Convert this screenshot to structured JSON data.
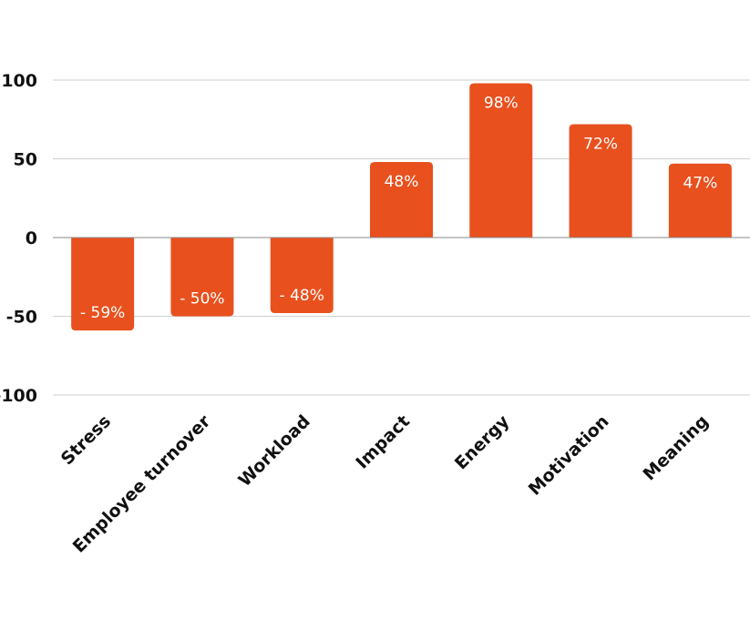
{
  "chart_data": {
    "type": "bar",
    "title": "",
    "xlabel": "",
    "ylabel": "",
    "categories": [
      "Stress",
      "Employee turnover",
      "Workload",
      "Impact",
      "Energy",
      "Motivation",
      "Meaning"
    ],
    "values": [
      -59,
      -50,
      -48,
      48,
      98,
      72,
      47
    ],
    "data_labels": [
      "- 59%",
      "- 50%",
      "- 48%",
      "48%",
      "98%",
      "72%",
      "47%"
    ],
    "ylim": [
      -100,
      100
    ],
    "yticks": [
      100,
      50,
      0,
      -50,
      -100
    ],
    "ytick_labels": [
      "100",
      "50",
      "0",
      "-50",
      "-100"
    ],
    "grid": true,
    "legend": "none",
    "colors": {
      "bar": "#e8501e",
      "grid": "#d0d0d0",
      "zero_line": "#888888",
      "text": "#111111",
      "data_label": "#ffffff"
    }
  }
}
